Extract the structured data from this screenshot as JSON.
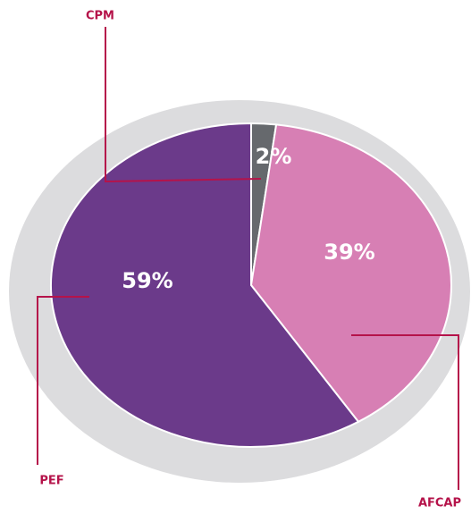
{
  "chart_data": {
    "type": "pie",
    "categories": [
      "CPM",
      "AFCAP",
      "PEF"
    ],
    "values": [
      2,
      39,
      59
    ],
    "value_labels": [
      "2%",
      "39%",
      "59%"
    ],
    "colors": [
      "#66696d",
      "#d77fb4",
      "#6b3a8a"
    ]
  }
}
